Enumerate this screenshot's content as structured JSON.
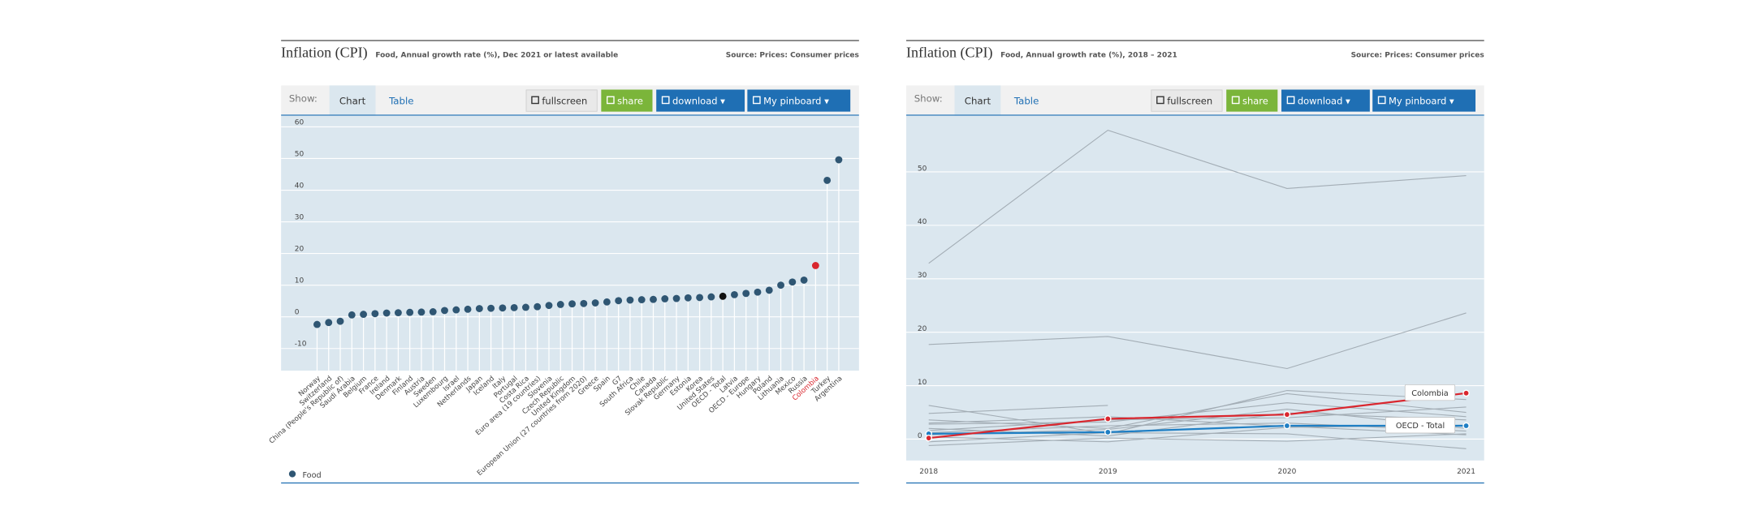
{
  "chart_data": [
    {
      "type": "dot",
      "title": "Inflation (CPI)",
      "subtitle": "Food, Annual growth rate (%), Dec 2021 or latest available",
      "source": "Source: Prices: Consumer prices",
      "toolbar": {
        "show": "Show:",
        "tabs": [
          "Chart",
          "Table"
        ],
        "buttons": [
          "fullscreen",
          "share",
          "download ▾",
          "My pinboard ▾"
        ]
      },
      "categories": [
        "Norway",
        "Switzerland",
        "China (People's Republic of)",
        "Saudi Arabia",
        "Belgium",
        "France",
        "Ireland",
        "Denmark",
        "Finland",
        "Austria",
        "Sweden",
        "Luxembourg",
        "Israel",
        "Netherlands",
        "Japan",
        "Iceland",
        "Italy",
        "Portugal",
        "Costa Rica",
        "Euro area (19 countries)",
        "Slovenia",
        "Czech Republic",
        "United Kingdom",
        "European Union (27 countries from 2020)",
        "Greece",
        "Spain",
        "G7",
        "South Africa",
        "Chile",
        "Canada",
        "Slovak Republic",
        "Germany",
        "Estonia",
        "Korea",
        "United States",
        "OECD - Total",
        "Latvia",
        "OECD - Europe",
        "Hungary",
        "Poland",
        "Lithuania",
        "Mexico",
        "Russia",
        "Colombia",
        "Turkey",
        "Argentina"
      ],
      "series": [
        {
          "name": "Food",
          "color": "#2f5673",
          "values": [
            -2.4,
            -1.8,
            -1.4,
            0.6,
            0.8,
            1.0,
            1.2,
            1.3,
            1.4,
            1.5,
            1.6,
            2.0,
            2.2,
            2.4,
            2.6,
            2.7,
            2.8,
            2.9,
            3.0,
            3.2,
            3.6,
            3.9,
            4.1,
            4.2,
            4.4,
            4.7,
            5.1,
            5.3,
            5.4,
            5.5,
            5.7,
            5.8,
            6.0,
            6.1,
            6.3,
            6.5,
            7.0,
            7.4,
            7.8,
            8.4,
            10.0,
            11.0,
            11.6,
            16.2,
            43.1,
            49.6
          ]
        }
      ],
      "highlight_colors": {
        "Colombia": "#d9262e",
        "OECD - Total": "#111111"
      },
      "ylim": [
        -17,
        63.5
      ],
      "yticks": [
        -10,
        0,
        10,
        20,
        30,
        40,
        50,
        60
      ],
      "grid": true
    },
    {
      "type": "line",
      "title": "Inflation (CPI)",
      "subtitle": "Food, Annual growth rate (%), 2018 – 2021",
      "source": "Source: Prices: Consumer prices",
      "toolbar": {
        "show": "Show:",
        "tabs": [
          "Chart",
          "Table"
        ],
        "buttons": [
          "fullscreen",
          "share",
          "download ▾",
          "My pinboard ▾"
        ]
      },
      "x": [
        2018,
        2019,
        2020,
        2021
      ],
      "series": [
        {
          "color": "#a3adb5",
          "values": [
            32.9,
            57.8,
            46.9,
            49.3
          ]
        },
        {
          "color": "#a3adb5",
          "values": [
            17.7,
            19.2,
            13.2,
            23.6
          ]
        },
        {
          "color": "#a3adb5",
          "values": [
            6.3,
            1.0,
            9.1,
            7.4
          ]
        },
        {
          "color": "#a3adb5",
          "values": [
            4.8,
            6.3,
            null,
            null
          ]
        },
        {
          "color": "#a3adb5",
          "values": [
            3.6,
            2.0,
            8.5,
            5.0
          ]
        },
        {
          "color": "#a3adb5",
          "values": [
            2.8,
            3.2,
            6.8,
            4.2
          ]
        },
        {
          "color": "#a3adb5",
          "values": [
            2.0,
            0.6,
            4.9,
            3.6
          ]
        },
        {
          "color": "#a3adb5",
          "values": [
            1.2,
            2.5,
            3.0,
            1.5
          ]
        },
        {
          "color": "#a3adb5",
          "values": [
            0.4,
            -0.5,
            2.2,
            2.6
          ]
        },
        {
          "color": "#a3adb5",
          "values": [
            -0.5,
            1.2,
            1.0,
            -1.8
          ]
        },
        {
          "color": "#a3adb5",
          "values": [
            3.0,
            4.2,
            2.4,
            0.8
          ]
        },
        {
          "color": "#a3adb5",
          "values": [
            -1.2,
            0.2,
            -0.4,
            1.0
          ]
        },
        {
          "color": "#a3adb5",
          "values": [
            1.6,
            3.6,
            4.0,
            6.0
          ]
        },
        {
          "color": "#a3adb5",
          "values": [
            0.8,
            1.8,
            5.6,
            2.0
          ]
        },
        {
          "name": "OECD - Total",
          "color": "#1f7fc4",
          "values": [
            1.0,
            1.3,
            2.5,
            2.5
          ]
        },
        {
          "name": "Colombia",
          "color": "#d9262e",
          "values": [
            0.2,
            3.8,
            4.6,
            8.6
          ]
        }
      ],
      "xlim": [
        2018,
        2021
      ],
      "xticks": [
        2018,
        2019,
        2020,
        2021
      ],
      "ylim": [
        -4,
        60.5
      ],
      "yticks": [
        0,
        10,
        20,
        30,
        40,
        50
      ],
      "grid": true
    }
  ]
}
